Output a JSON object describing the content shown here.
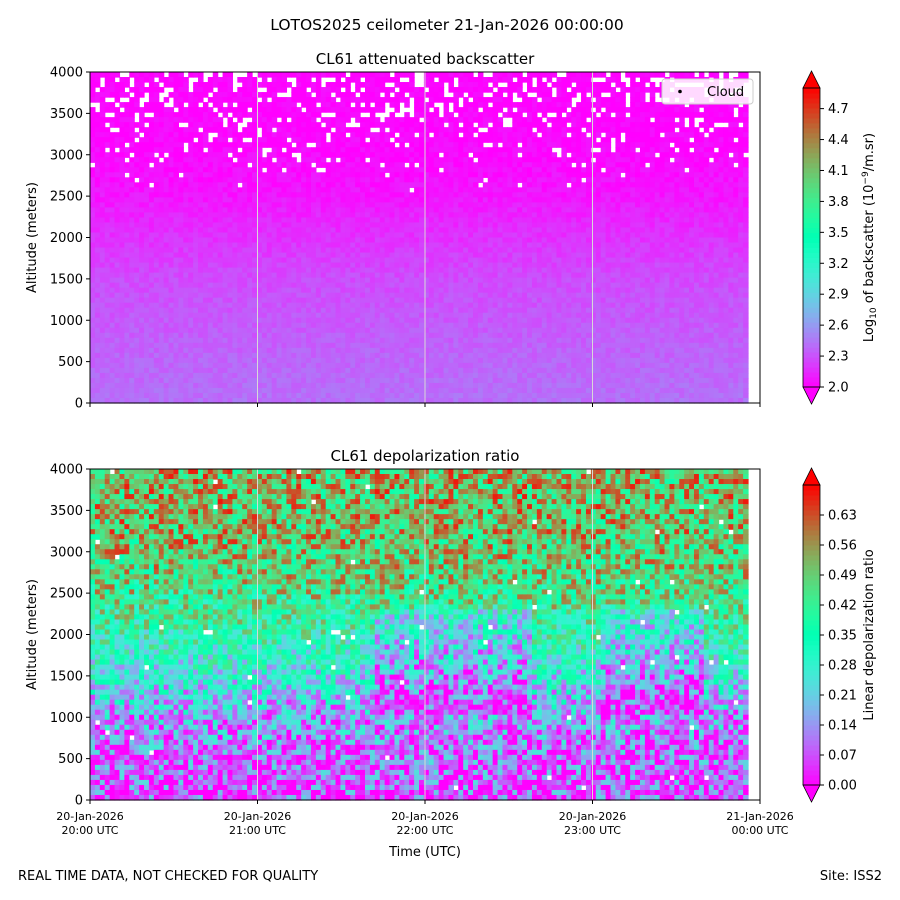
{
  "figure": {
    "suptitle": "LOTOS2025 ceilometer 21-Jan-2026 00:00:00",
    "footer_left": "REAL TIME DATA, NOT CHECKED FOR QUALITY",
    "footer_right": "Site: ISS2"
  },
  "chart_data": [
    {
      "type": "heatmap",
      "title": "CL61 attenuated backscatter",
      "ylabel": "Altitude (meters)",
      "xlabel": "",
      "ylim": [
        0,
        4000
      ],
      "yticks": [
        0,
        500,
        1000,
        1500,
        2000,
        2500,
        3000,
        3500,
        4000
      ],
      "xlim_hours": [
        20,
        24
      ],
      "xticks_hours": [
        20,
        21,
        22,
        23,
        24
      ],
      "xtick_labels": [
        "20-Jan-2026\n20:00 UTC",
        "20-Jan-2026\n21:00 UTC",
        "20-Jan-2026\n22:00 UTC",
        "20-Jan-2026\n23:00 UTC",
        "21-Jan-2026\n00:00 UTC"
      ],
      "show_xtick_labels": false,
      "grid": "vertical at each hour",
      "legend": {
        "placement": "top-right",
        "entries": [
          "Cloud"
        ]
      },
      "colorbar": {
        "label": "Log10 of backscatter (10^-9/m.sr)",
        "label_main": "Log",
        "label_sub": "10",
        "label_rest1": " of backscatter (10",
        "label_sup": "−9",
        "label_rest2": "/m.sr)",
        "vmin": 2.0,
        "vmax": 4.9,
        "ticks": [
          2.0,
          2.3,
          2.6,
          2.9,
          3.2,
          3.5,
          3.8,
          4.1,
          4.4,
          4.7
        ],
        "tick_labels": [
          "2.0",
          "2.3",
          "2.6",
          "2.9",
          "3.2",
          "3.5",
          "3.8",
          "4.1",
          "4.4",
          "4.7"
        ],
        "extend": "both",
        "colormap": "rainbow"
      },
      "profile": {
        "description": "backscatter nearly uniform low values; ~2.3-2.4 near surface, decreasing to ~2.0 above 2500 m; white gaps (masked) above 2500 m",
        "altitudes": [
          0,
          500,
          1000,
          1500,
          2000,
          2500,
          3000,
          3500,
          4000
        ],
        "mean_values": [
          2.42,
          2.38,
          2.33,
          2.28,
          2.18,
          2.08,
          2.03,
          2.01,
          2.0
        ]
      }
    },
    {
      "type": "heatmap",
      "title": "CL61 depolarization ratio",
      "ylabel": "Altitude (meters)",
      "xlabel": "Time (UTC)",
      "ylim": [
        0,
        4000
      ],
      "yticks": [
        0,
        500,
        1000,
        1500,
        2000,
        2500,
        3000,
        3500,
        4000
      ],
      "xlim_hours": [
        20,
        24
      ],
      "xticks_hours": [
        20,
        21,
        22,
        23,
        24
      ],
      "xtick_labels": [
        "20-Jan-2026\n20:00 UTC",
        "20-Jan-2026\n21:00 UTC",
        "20-Jan-2026\n22:00 UTC",
        "20-Jan-2026\n23:00 UTC",
        "21-Jan-2026\n00:00 UTC"
      ],
      "show_xtick_labels": true,
      "grid": "vertical at each hour",
      "colorbar": {
        "label": "Linear depolarization ratio",
        "vmin": 0.0,
        "vmax": 0.7,
        "ticks": [
          0.0,
          0.07,
          0.14,
          0.21,
          0.28,
          0.35,
          0.42,
          0.49,
          0.56,
          0.63
        ],
        "tick_labels": [
          "0.00",
          "0.07",
          "0.14",
          "0.21",
          "0.28",
          "0.35",
          "0.42",
          "0.49",
          "0.56",
          "0.63"
        ],
        "extend": "both",
        "colormap": "rainbow"
      },
      "profile": {
        "description": "low depolarization (~0.05-0.15) below 1000 m, increasing to ~0.4-0.6 above 2500 m",
        "altitudes": [
          0,
          500,
          1000,
          1500,
          2000,
          2500,
          3000,
          3500,
          4000
        ],
        "mean_values": [
          0.06,
          0.09,
          0.15,
          0.26,
          0.36,
          0.45,
          0.5,
          0.52,
          0.52
        ]
      }
    }
  ]
}
